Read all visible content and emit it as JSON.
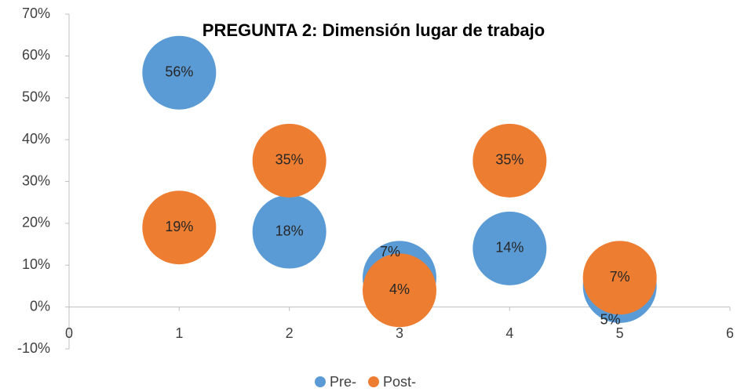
{
  "chart_data": {
    "type": "scatter",
    "title": "PREGUNTA 2: Dimensión lugar de trabajo",
    "xlim": [
      0,
      6
    ],
    "xticks": [
      0,
      1,
      2,
      3,
      4,
      5,
      6
    ],
    "ylim": [
      -10,
      70
    ],
    "yticks": [
      {
        "value": -10,
        "label": "-10%"
      },
      {
        "value": 0,
        "label": "0%"
      },
      {
        "value": 10,
        "label": "10%"
      },
      {
        "value": 20,
        "label": "20%"
      },
      {
        "value": 30,
        "label": "30%"
      },
      {
        "value": 40,
        "label": "40%"
      },
      {
        "value": 50,
        "label": "50%"
      },
      {
        "value": 60,
        "label": "60%"
      },
      {
        "value": 70,
        "label": "70%"
      }
    ],
    "grid": false,
    "legend": "bottom",
    "series": [
      {
        "name": "Pre-",
        "color": "#5b9bd5",
        "x": [
          1,
          2,
          3,
          4,
          5
        ],
        "values": [
          56,
          18,
          7,
          14,
          5
        ],
        "value_labels": [
          "56%",
          "18%",
          "7%",
          "14%",
          "5%"
        ]
      },
      {
        "name": "Post-",
        "color": "#ed7d31",
        "x": [
          1,
          2,
          3,
          4,
          5
        ],
        "values": [
          19,
          35,
          4,
          35,
          7
        ],
        "value_labels": [
          "19%",
          "35%",
          "4%",
          "35%",
          "7%"
        ]
      }
    ]
  }
}
